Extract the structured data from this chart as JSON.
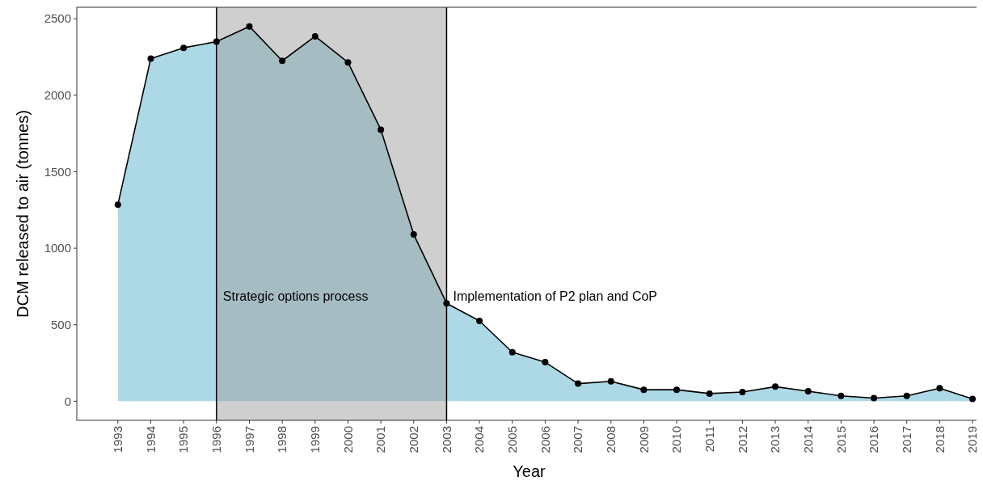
{
  "chart_data": {
    "type": "area",
    "xlabel": "Year",
    "ylabel": "DCM released to air (tonnes)",
    "x": [
      1993,
      1994,
      1995,
      1996,
      1997,
      1998,
      1999,
      2000,
      2001,
      2002,
      2003,
      2004,
      2005,
      2006,
      2007,
      2008,
      2009,
      2010,
      2011,
      2012,
      2013,
      2014,
      2015,
      2016,
      2017,
      2018,
      2019
    ],
    "series": [
      {
        "color": "#add8e6",
        "values": [
          1285,
          2240,
          2310,
          2350,
          2450,
          2225,
          2385,
          2215,
          1775,
          1090,
          640,
          525,
          320,
          255,
          115,
          130,
          75,
          75,
          50,
          60,
          95,
          65,
          35,
          20,
          35,
          85,
          15
        ]
      }
    ],
    "xlim": [
      1991.75,
      2019.27
    ],
    "xticks": [
      1993,
      1994,
      1995,
      1996,
      1997,
      1998,
      1999,
      2000,
      2001,
      2002,
      2003,
      2004,
      2005,
      2006,
      2007,
      2008,
      2009,
      2010,
      2011,
      2012,
      2013,
      2014,
      2015,
      2016,
      2017,
      2018,
      2019
    ],
    "ylim": [
      -125,
      2575
    ],
    "yticks": [
      0,
      500,
      1000,
      1500,
      2000,
      2500
    ],
    "bands": [
      {
        "axis": "x",
        "from": 1996,
        "to": 2003,
        "color": "#a0a0a0"
      }
    ],
    "ref_lines": [
      {
        "axis": "x",
        "value": 1996,
        "label": "Strategic options process",
        "color": "#000000"
      },
      {
        "axis": "x",
        "value": 2003,
        "label": "Implementation of P2 plan and CoP",
        "color": "#000000"
      }
    ],
    "marker": "circle",
    "line_style": "solid",
    "grid": false
  }
}
